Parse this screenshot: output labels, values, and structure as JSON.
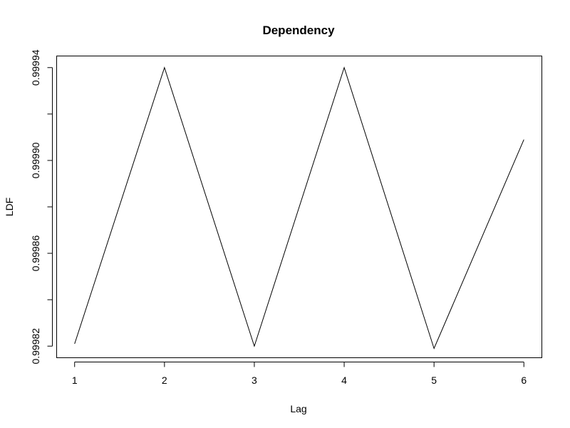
{
  "chart_data": {
    "type": "line",
    "title": "Dependency",
    "xlabel": "Lag",
    "ylabel": "LDF",
    "x": [
      1,
      2,
      3,
      4,
      5,
      6
    ],
    "series": [
      {
        "values": [
          0.999821,
          0.99994,
          0.99982,
          0.99994,
          0.999819,
          0.999909
        ],
        "color": "#000000"
      }
    ],
    "xlim": [
      0.8,
      6.2
    ],
    "ylim": [
      0.999815,
      0.999945
    ],
    "xticks": [
      1,
      2,
      3,
      4,
      5,
      6
    ],
    "xtick_labels": [
      "1",
      "2",
      "3",
      "4",
      "5",
      "6"
    ],
    "yticks": [
      0.99982,
      0.99984,
      0.99986,
      0.99988,
      0.9999,
      0.99992,
      0.99994
    ],
    "ytick_labels": [
      "0.99982",
      "",
      "0.99986",
      "",
      "0.99990",
      "",
      "0.99994"
    ],
    "grid": false,
    "legend": "none"
  }
}
